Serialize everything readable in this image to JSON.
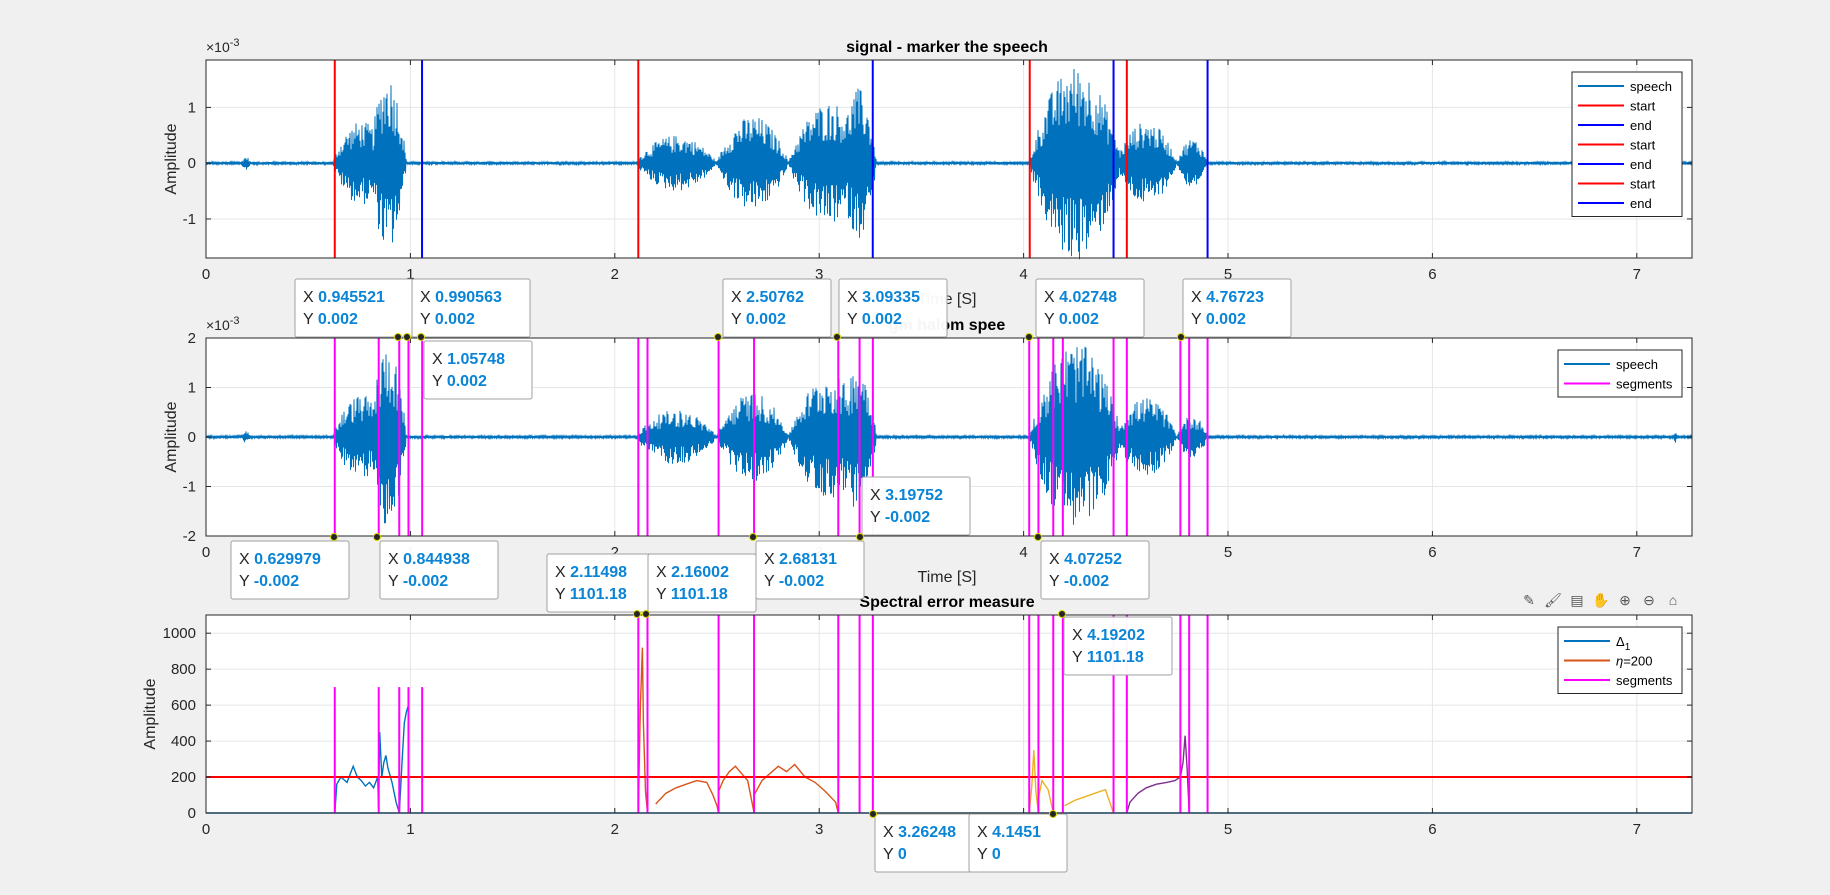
{
  "chart_data": [
    {
      "type": "line",
      "title": "signal - marker the speech",
      "xlabel": "Time [S]",
      "ylabel": "Amplitude",
      "exponent": "×10",
      "exponent_power": "-3",
      "xlim": [
        0,
        7.27
      ],
      "ylim": [
        -1.7,
        1.85
      ],
      "xticks": [
        "0",
        "1",
        "2",
        "3",
        "4",
        "5",
        "6",
        "7"
      ],
      "yticks": [
        "-1",
        "0",
        "1"
      ],
      "grid": true,
      "legend": {
        "position": "top-right",
        "entries": [
          {
            "label": "speech",
            "color": "#0072bd"
          },
          {
            "label": "start",
            "color": "#ff0000"
          },
          {
            "label": "end",
            "color": "#0000ff"
          },
          {
            "label": "start",
            "color": "#ff0000"
          },
          {
            "label": "end",
            "color": "#0000ff"
          },
          {
            "label": "start",
            "color": "#ff0000"
          },
          {
            "label": "end",
            "color": "#0000ff"
          }
        ]
      },
      "start_markers": [
        0.63,
        2.115,
        4.03,
        4.505
      ],
      "end_markers": [
        1.057,
        3.262,
        4.44,
        4.9
      ],
      "speech_bursts": [
        {
          "x0": 0.17,
          "x1": 0.22,
          "amp": 0.12
        },
        {
          "x0": 0.62,
          "x1": 0.9,
          "amp": 0.75
        },
        {
          "x0": 0.8,
          "x1": 0.98,
          "amp": 1.6
        },
        {
          "x0": 2.1,
          "x1": 2.5,
          "amp": 0.5
        },
        {
          "x0": 2.5,
          "x1": 2.85,
          "amp": 0.85
        },
        {
          "x0": 2.85,
          "x1": 3.25,
          "amp": 1.1
        },
        {
          "x0": 3.1,
          "x1": 3.28,
          "amp": 1.35
        },
        {
          "x0": 4.03,
          "x1": 4.48,
          "amp": 1.75
        },
        {
          "x0": 4.45,
          "x1": 4.75,
          "amp": 0.75
        },
        {
          "x0": 4.75,
          "x1": 4.9,
          "amp": 0.45
        }
      ]
    },
    {
      "type": "line",
      "title": "gm    halom spee",
      "xlabel": "Time [S]",
      "ylabel": "Amplitude",
      "exponent": "×10",
      "exponent_power": "-3",
      "xlim": [
        0,
        7.27
      ],
      "ylim": [
        -2,
        2
      ],
      "xticks": [
        "0",
        "1",
        "2",
        "3",
        "4",
        "5",
        "6",
        "7"
      ],
      "yticks": [
        "-2",
        "-1",
        "0",
        "1",
        "2"
      ],
      "grid": true,
      "legend": {
        "position": "top-right",
        "entries": [
          {
            "label": "speech",
            "color": "#0072bd"
          },
          {
            "label": "segments",
            "color": "#ff00ff"
          }
        ]
      },
      "segments": [
        0.63,
        0.845,
        0.9455,
        0.9906,
        1.0575,
        2.115,
        2.16,
        2.5076,
        2.6813,
        3.0934,
        3.1975,
        3.2625,
        4.0275,
        4.0725,
        4.1451,
        4.192,
        4.44,
        4.505,
        4.767,
        4.81,
        4.9
      ],
      "speech_bursts": [
        {
          "x0": 0.17,
          "x1": 0.22,
          "amp": 0.12
        },
        {
          "x0": 0.62,
          "x1": 0.9,
          "amp": 0.85
        },
        {
          "x0": 0.8,
          "x1": 0.98,
          "amp": 1.85
        },
        {
          "x0": 2.1,
          "x1": 2.5,
          "amp": 0.55
        },
        {
          "x0": 2.5,
          "x1": 2.85,
          "amp": 0.9
        },
        {
          "x0": 2.85,
          "x1": 3.25,
          "amp": 1.25
        },
        {
          "x0": 3.1,
          "x1": 3.28,
          "amp": 1.5
        },
        {
          "x0": 4.03,
          "x1": 4.48,
          "amp": 1.9
        },
        {
          "x0": 4.45,
          "x1": 4.75,
          "amp": 0.8
        },
        {
          "x0": 4.75,
          "x1": 4.9,
          "amp": 0.45
        },
        {
          "x0": 7.18,
          "x1": 7.2,
          "amp": 0.12
        }
      ]
    },
    {
      "type": "line",
      "title": "Spectral error measure",
      "xlabel": "",
      "ylabel": "Amplitude",
      "xlim": [
        0,
        7.27
      ],
      "ylim": [
        0,
        1101.18
      ],
      "xticks": [
        "0",
        "1",
        "2",
        "3",
        "4",
        "5",
        "6",
        "7"
      ],
      "yticks": [
        "0",
        "200",
        "400",
        "600",
        "800",
        "1000"
      ],
      "grid": true,
      "threshold": 200,
      "legend": {
        "position": "top-right",
        "entries": [
          {
            "label": "Δ",
            "sub": "1",
            "color": "#0072bd"
          },
          {
            "label": "η",
            "suffix": "=200",
            "color": "#d95319"
          },
          {
            "label": "segments",
            "color": "#ff00ff"
          }
        ]
      },
      "short_segments": [
        0.63,
        0.845,
        0.9455,
        0.9906,
        1.0575
      ],
      "short_segment_height": 700,
      "segments": [
        2.115,
        2.16,
        2.5076,
        2.6813,
        3.0934,
        3.1975,
        3.2625,
        4.0275,
        4.0725,
        4.1451,
        4.192,
        4.44,
        4.505,
        4.767,
        4.81,
        4.9
      ],
      "error_series": [
        {
          "color": "#0072bd",
          "points": [
            [
              0.63,
              0
            ],
            [
              0.64,
              160
            ],
            [
              0.66,
              200
            ],
            [
              0.69,
              170
            ],
            [
              0.71,
              230
            ],
            [
              0.72,
              260
            ],
            [
              0.74,
              200
            ],
            [
              0.76,
              180
            ],
            [
              0.78,
              150
            ],
            [
              0.8,
              170
            ],
            [
              0.82,
              140
            ],
            [
              0.84,
              200
            ],
            [
              0.845,
              0
            ]
          ]
        },
        {
          "color": "#0072bd",
          "points": [
            [
              0.845,
              100
            ],
            [
              0.85,
              450
            ],
            [
              0.86,
              200
            ],
            [
              0.87,
              280
            ],
            [
              0.88,
              320
            ],
            [
              0.89,
              250
            ],
            [
              0.91,
              170
            ],
            [
              0.93,
              60
            ],
            [
              0.9455,
              0
            ]
          ]
        },
        {
          "color": "#0072bd",
          "points": [
            [
              0.9455,
              0
            ],
            [
              0.96,
              300
            ],
            [
              0.97,
              500
            ],
            [
              0.98,
              560
            ],
            [
              0.99,
              600
            ],
            [
              0.9906,
              0
            ]
          ]
        },
        {
          "color": "#d95319",
          "points": [
            [
              2.115,
              0
            ],
            [
              2.125,
              600
            ],
            [
              2.135,
              920
            ],
            [
              2.14,
              500
            ],
            [
              2.15,
              120
            ],
            [
              2.16,
              0
            ]
          ]
        },
        {
          "color": "#d95319",
          "points": [
            [
              2.2,
              50
            ],
            [
              2.25,
              110
            ],
            [
              2.3,
              140
            ],
            [
              2.35,
              160
            ],
            [
              2.4,
              180
            ],
            [
              2.45,
              170
            ],
            [
              2.48,
              100
            ],
            [
              2.5,
              40
            ],
            [
              2.5076,
              0
            ]
          ]
        },
        {
          "color": "#d95319",
          "points": [
            [
              2.5076,
              120
            ],
            [
              2.53,
              180
            ],
            [
              2.56,
              230
            ],
            [
              2.59,
              260
            ],
            [
              2.62,
              220
            ],
            [
              2.65,
              180
            ],
            [
              2.6813,
              0
            ]
          ]
        },
        {
          "color": "#d95319",
          "points": [
            [
              2.6813,
              100
            ],
            [
              2.72,
              180
            ],
            [
              2.76,
              220
            ],
            [
              2.8,
              260
            ],
            [
              2.84,
              230
            ],
            [
              2.88,
              270
            ],
            [
              2.93,
              200
            ],
            [
              2.98,
              170
            ],
            [
              3.03,
              120
            ],
            [
              3.08,
              60
            ],
            [
              3.0934,
              0
            ]
          ]
        },
        {
          "color": "#edb120",
          "points": [
            [
              4.0275,
              0
            ],
            [
              4.04,
              150
            ],
            [
              4.05,
              350
            ],
            [
              4.06,
              120
            ],
            [
              4.0725,
              0
            ]
          ]
        },
        {
          "color": "#edb120",
          "points": [
            [
              4.0725,
              80
            ],
            [
              4.09,
              180
            ],
            [
              4.12,
              130
            ],
            [
              4.1451,
              0
            ]
          ]
        },
        {
          "color": "#edb120",
          "points": [
            [
              4.2,
              40
            ],
            [
              4.25,
              70
            ],
            [
              4.3,
              90
            ],
            [
              4.35,
              110
            ],
            [
              4.4,
              130
            ],
            [
              4.44,
              0
            ]
          ]
        },
        {
          "color": "#7e2f8e",
          "points": [
            [
              4.505,
              0
            ],
            [
              4.52,
              60
            ],
            [
              4.56,
              110
            ],
            [
              4.6,
              140
            ],
            [
              4.65,
              160
            ],
            [
              4.7,
              170
            ],
            [
              4.74,
              180
            ],
            [
              4.767,
              200
            ],
            [
              4.78,
              280
            ],
            [
              4.79,
              430
            ],
            [
              4.8,
              250
            ],
            [
              4.81,
              0
            ]
          ]
        }
      ]
    }
  ],
  "datatips": [
    {
      "x": "0.945521",
      "y": "0.002"
    },
    {
      "x": "0.990563",
      "y": "0.002"
    },
    {
      "x": "1.05748",
      "y": "0.002"
    },
    {
      "x": "2.50762",
      "y": "0.002"
    },
    {
      "x": "3.09335",
      "y": "0.002"
    },
    {
      "x": "4.02748",
      "y": "0.002"
    },
    {
      "x": "4.76723",
      "y": "0.002"
    },
    {
      "x": "3.19752",
      "y": "-0.002"
    },
    {
      "x": "0.629979",
      "y": "-0.002"
    },
    {
      "x": "0.844938",
      "y": "-0.002"
    },
    {
      "x": "2.68131",
      "y": "-0.002"
    },
    {
      "x": "4.07252",
      "y": "-0.002"
    },
    {
      "x": "2.11498",
      "y": "1101.18"
    },
    {
      "x": "2.16002",
      "y": "1101.18"
    },
    {
      "x": "4.19202",
      "y": "1101.18"
    },
    {
      "x": "3.26248",
      "y": "0"
    },
    {
      "x": "4.1451",
      "y": "0"
    }
  ],
  "toolbar": [
    {
      "name": "edit-plot-icon",
      "glyph": "✎"
    },
    {
      "name": "brush-icon",
      "glyph": "🖌"
    },
    {
      "name": "data-tips-icon",
      "glyph": "▤"
    },
    {
      "name": "pan-icon",
      "glyph": "✋"
    },
    {
      "name": "zoom-in-icon",
      "glyph": "⊕"
    },
    {
      "name": "zoom-out-icon",
      "glyph": "⊖"
    },
    {
      "name": "home-icon",
      "glyph": "⌂"
    }
  ]
}
